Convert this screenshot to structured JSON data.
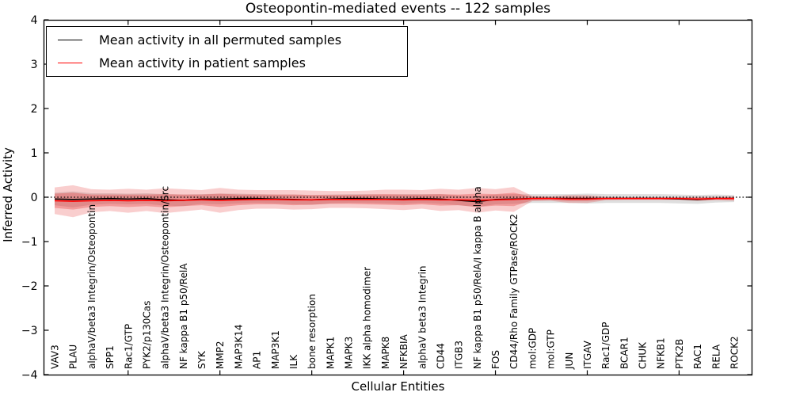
{
  "figure": {
    "title": "Osteopontin-mediated events -- 122 samples",
    "xlabel": "Cellular Entities",
    "ylabel": "Inferred Activity"
  },
  "legend": {
    "items": [
      {
        "label": "Mean activity in all permuted samples",
        "color": "#000000"
      },
      {
        "label": "Mean activity in patient samples",
        "color": "#ff0000"
      }
    ]
  },
  "chart_data": {
    "type": "line",
    "title": "Osteopontin-mediated events -- 122 samples",
    "xlabel": "Cellular Entities",
    "ylabel": "Inferred Activity",
    "ylim": [
      -4,
      4
    ],
    "yticks": [
      4,
      3,
      2,
      1,
      0,
      -1,
      -2,
      -3,
      -4
    ],
    "xtick_every": 5,
    "grid": false,
    "zero_reference_line": "black dotted at y=0",
    "legend_position": "upper left",
    "categories": [
      "VAV3",
      "PLAU",
      "alphaV/beta3 Integrin/Osteopontin",
      "SPP1",
      "Rac1/GTP",
      "PYK2/p130Cas",
      "alphaV/beta3 Integrin/Osteopontin/Src",
      "NF kappa B1 p50/RelA",
      "SYK",
      "MMP2",
      "MAP3K14",
      "AP1",
      "MAP3K1",
      "ILK",
      "bone resorption",
      "MAPK1",
      "MAPK3",
      "IKK alpha homodimer",
      "MAPK8",
      "NFKBIA",
      "alphaV beta3 Integrin",
      "CD44",
      "ITGB3",
      "NF kappa B1 p50/RelA/I kappa B alpha",
      "FOS",
      "CD44/Rho Family GTPase/ROCK2",
      "mol:GDP",
      "mol:GTP",
      "JUN",
      "ITGAV",
      "Rac1/GDP",
      "BCAR1",
      "CHUK",
      "NFKB1",
      "PTK2B",
      "RAC1",
      "RELA",
      "ROCK2"
    ],
    "series": [
      {
        "name": "Mean activity in all permuted samples",
        "color": "#000000",
        "values": [
          -0.04,
          -0.05,
          -0.04,
          -0.03,
          -0.04,
          -0.03,
          -0.06,
          -0.07,
          -0.04,
          -0.04,
          -0.03,
          -0.03,
          -0.04,
          -0.05,
          -0.06,
          -0.04,
          -0.03,
          -0.03,
          -0.04,
          -0.04,
          -0.03,
          -0.04,
          -0.07,
          -0.1,
          -0.05,
          -0.04,
          -0.03,
          -0.03,
          -0.03,
          -0.03,
          -0.03,
          -0.03,
          -0.03,
          -0.03,
          -0.04,
          -0.05,
          -0.03,
          -0.03
        ]
      },
      {
        "name": "Mean activity in patient samples",
        "color": "#ff0000",
        "values": [
          -0.08,
          -0.09,
          -0.08,
          -0.07,
          -0.08,
          -0.07,
          -0.08,
          -0.07,
          -0.06,
          -0.07,
          -0.06,
          -0.05,
          -0.05,
          -0.06,
          -0.06,
          -0.05,
          -0.05,
          -0.05,
          -0.05,
          -0.06,
          -0.05,
          -0.06,
          -0.06,
          -0.07,
          -0.06,
          -0.05,
          -0.03,
          -0.03,
          -0.04,
          -0.04,
          -0.03,
          -0.03,
          -0.03,
          -0.03,
          -0.03,
          -0.04,
          -0.03,
          -0.03
        ]
      }
    ],
    "bands": [
      {
        "name": "permuted-samples-std-band",
        "color": "rgba(0,0,0,0.13)",
        "center_series": 0,
        "halfwidths": [
          0.14,
          0.18,
          0.13,
          0.12,
          0.12,
          0.12,
          0.13,
          0.13,
          0.11,
          0.12,
          0.11,
          0.1,
          0.1,
          0.11,
          0.11,
          0.1,
          0.1,
          0.1,
          0.1,
          0.11,
          0.1,
          0.11,
          0.11,
          0.12,
          0.11,
          0.11,
          0.1,
          0.1,
          0.1,
          0.11,
          0.1,
          0.1,
          0.1,
          0.1,
          0.1,
          0.1,
          0.09,
          0.08
        ]
      },
      {
        "name": "patient-samples-outer-band",
        "color": "rgba(228,30,30,0.22)",
        "center_series": 1,
        "halfwidths": [
          0.3,
          0.36,
          0.26,
          0.24,
          0.27,
          0.24,
          0.28,
          0.25,
          0.22,
          0.28,
          0.23,
          0.21,
          0.21,
          0.22,
          0.21,
          0.19,
          0.19,
          0.2,
          0.22,
          0.23,
          0.21,
          0.25,
          0.23,
          0.28,
          0.24,
          0.28,
          0.06,
          0.05,
          0.09,
          0.09,
          0.04,
          0.03,
          0.03,
          0.03,
          0.03,
          0.05,
          0.04,
          0.05
        ]
      },
      {
        "name": "patient-samples-inner-band",
        "color": "rgba(228,30,30,0.28)",
        "center_series": 1,
        "halfwidths": [
          0.16,
          0.19,
          0.14,
          0.13,
          0.14,
          0.13,
          0.15,
          0.13,
          0.12,
          0.15,
          0.12,
          0.11,
          0.11,
          0.12,
          0.11,
          0.1,
          0.1,
          0.11,
          0.12,
          0.12,
          0.11,
          0.13,
          0.12,
          0.15,
          0.13,
          0.15,
          0.04,
          0.03,
          0.05,
          0.05,
          0.02,
          0.02,
          0.02,
          0.02,
          0.02,
          0.03,
          0.02,
          0.03
        ]
      }
    ]
  }
}
